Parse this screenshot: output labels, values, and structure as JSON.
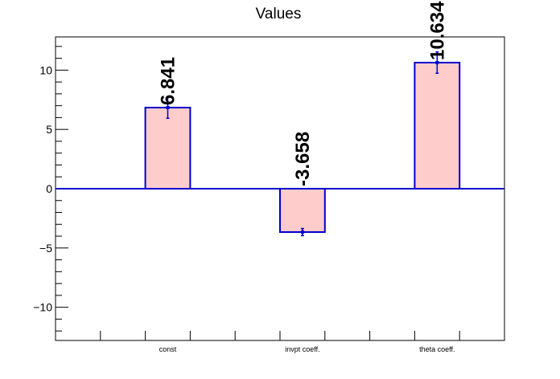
{
  "chart_data": {
    "type": "bar",
    "title": "Values",
    "categories": [
      "const",
      "invpt coeff.",
      "theta coeff."
    ],
    "values": [
      6.841,
      -3.658,
      10.634
    ],
    "errors": [
      0.9,
      0.3,
      0.9
    ],
    "data_labels": [
      "6.841",
      "-3.658",
      "10.634"
    ],
    "ylim": [
      -12.8,
      12.8
    ],
    "yticks": [
      -10,
      -5,
      0,
      5,
      10
    ],
    "ytick_labels": [
      "−10",
      "−5",
      "0",
      "5",
      "10"
    ],
    "xlabel": "",
    "ylabel": "",
    "grid": false,
    "colors": {
      "bar_fill": "#ffcccc",
      "bar_edge": "#0000cc",
      "zero_line": "#0000cc",
      "axis": "#000000"
    }
  }
}
